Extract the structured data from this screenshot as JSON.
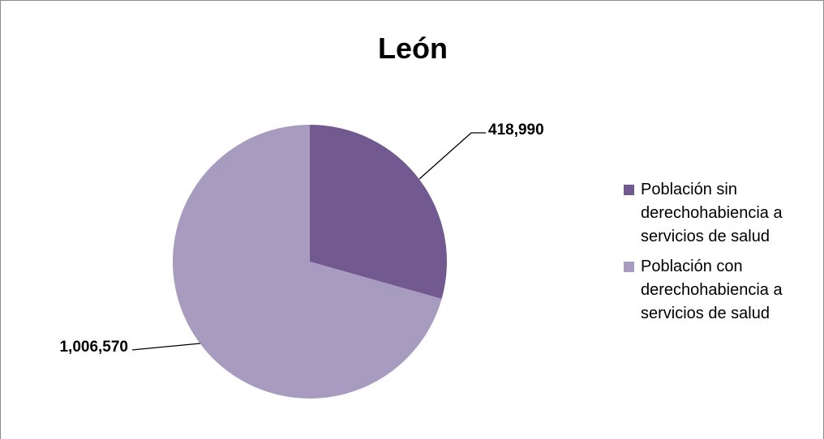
{
  "chart_data": {
    "type": "pie",
    "title": "León",
    "categories": [
      "Población sin derechohabiencia a servicios de salud",
      "Población con derechohabiencia a servicios de salud"
    ],
    "values": [
      418990,
      1006570
    ],
    "value_labels": [
      "418,990",
      "1,006,570"
    ],
    "colors": [
      "#725990",
      "#a89bc0"
    ],
    "legend_position": "right",
    "start_angle": "12 o'clock",
    "direction": "clockwise"
  }
}
